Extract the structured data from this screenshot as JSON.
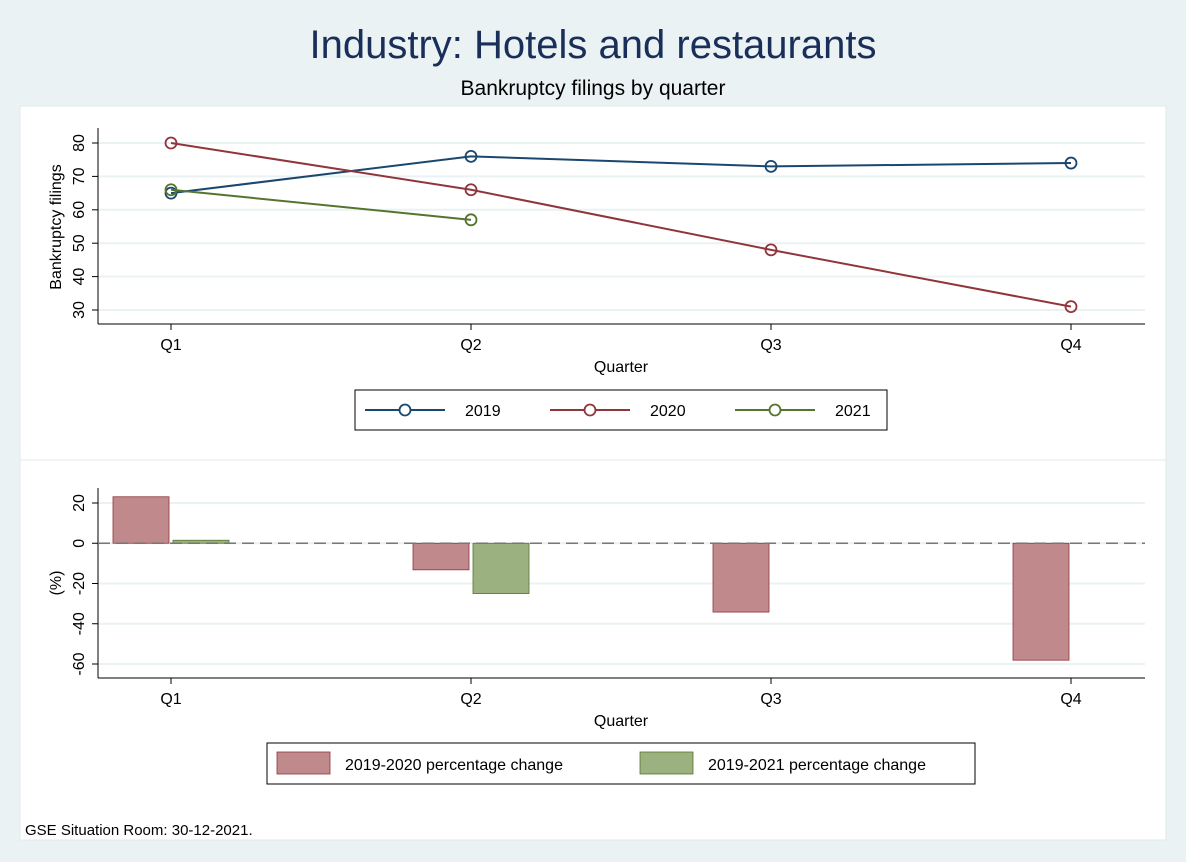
{
  "title": "Industry: Hotels and restaurants",
  "subtitle": "Bankruptcy filings by quarter",
  "footer": "GSE Situation Room: 30-12-2021.",
  "chart_data": [
    {
      "type": "line",
      "categories": [
        "Q1",
        "Q2",
        "Q3",
        "Q4"
      ],
      "xlabel": "Quarter",
      "ylabel": "Bankruptcy filings",
      "ylim": [
        30,
        80
      ],
      "yticks": [
        30,
        40,
        50,
        60,
        70,
        80
      ],
      "grid": true,
      "legend": "bottom",
      "series": [
        {
          "name": "2019",
          "color": "#1a476f",
          "values": [
            65,
            76,
            73,
            74
          ]
        },
        {
          "name": "2020",
          "color": "#90353b",
          "values": [
            80,
            66,
            48,
            31
          ]
        },
        {
          "name": "2021",
          "color": "#55752f",
          "values": [
            66,
            57,
            null,
            null
          ]
        }
      ]
    },
    {
      "type": "bar",
      "categories": [
        "Q1",
        "Q2",
        "Q3",
        "Q4"
      ],
      "xlabel": "Quarter",
      "ylabel": "(%)",
      "ylim": [
        -60,
        20
      ],
      "yticks": [
        -60,
        -40,
        -20,
        0,
        20
      ],
      "grid": true,
      "reference_line": 0,
      "legend": "bottom",
      "series": [
        {
          "name": "2019-2020 percentage change",
          "color": "#c08a8d",
          "values": [
            23.1,
            -13.2,
            -34.2,
            -58.1
          ]
        },
        {
          "name": "2019-2021 percentage change",
          "color": "#9bb17f",
          "values": [
            1.5,
            -25.0,
            null,
            null
          ]
        }
      ]
    }
  ]
}
